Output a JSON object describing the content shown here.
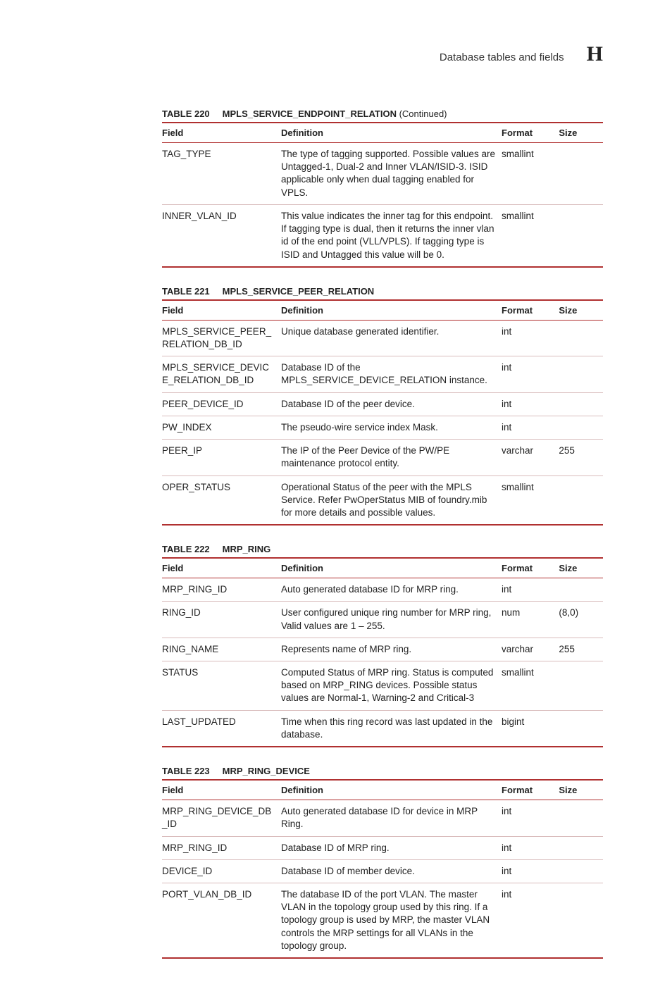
{
  "running_head": {
    "title": "Database tables and fields",
    "chapter": "H"
  },
  "colors": {
    "rule": "#b03030",
    "row_rule": "#d9bcbc"
  },
  "column_headers": {
    "field": "Field",
    "definition": "Definition",
    "format": "Format",
    "size": "Size"
  },
  "tables": {
    "t220": {
      "num": "TABLE 220",
      "name": "MPLS_SERVICE_ENDPOINT_RELATION",
      "suffix": " (Continued)",
      "rows": [
        {
          "field": "TAG_TYPE",
          "definition": "The type of tagging supported. Possible values are Untagged-1, Dual-2 and Inner VLAN/ISID-3. ISID applicable only when dual tagging enabled for VPLS.",
          "format": "smallint",
          "size": ""
        },
        {
          "field": "INNER_VLAN_ID",
          "definition": "This value indicates the inner tag for this endpoint. If tagging type is dual, then it returns the inner vlan id of the end point (VLL/VPLS). If tagging type is ISID and Untagged this value will be 0.",
          "format": "smallint",
          "size": ""
        }
      ]
    },
    "t221": {
      "num": "TABLE 221",
      "name": "MPLS_SERVICE_PEER_RELATION",
      "suffix": "",
      "rows": [
        {
          "field": "MPLS_SERVICE_PEER_RELATION_DB_ID",
          "definition": "Unique database generated identifier.",
          "format": "int",
          "size": ""
        },
        {
          "field": "MPLS_SERVICE_DEVICE_RELATION_DB_ID",
          "definition": "Database ID of the MPLS_SERVICE_DEVICE_RELATION instance.",
          "format": "int",
          "size": ""
        },
        {
          "field": "PEER_DEVICE_ID",
          "definition": "Database ID of the peer device.",
          "format": "int",
          "size": ""
        },
        {
          "field": "PW_INDEX",
          "definition": "The pseudo-wire service index Mask.",
          "format": "int",
          "size": ""
        },
        {
          "field": "PEER_IP",
          "definition": "The IP of the Peer Device of the PW/PE maintenance protocol entity.",
          "format": "varchar",
          "size": "255"
        },
        {
          "field": "OPER_STATUS",
          "definition": "Operational Status of the peer with the MPLS Service. Refer PwOperStatus MIB of foundry.mib for more details and possible values.",
          "format": "smallint",
          "size": ""
        }
      ]
    },
    "t222": {
      "num": "TABLE 222",
      "name": "MRP_RING",
      "suffix": "",
      "rows": [
        {
          "field": "MRP_RING_ID",
          "definition": "Auto generated database ID for MRP ring.",
          "format": "int",
          "size": ""
        },
        {
          "field": "RING_ID",
          "definition": "User configured unique ring number for MRP ring, Valid values are 1 – 255.",
          "format": "num",
          "size": "(8,0)"
        },
        {
          "field": "RING_NAME",
          "definition": "Represents name of MRP ring.",
          "format": "varchar",
          "size": "255"
        },
        {
          "field": "STATUS",
          "definition": "Computed Status of MRP ring. Status is computed based on MRP_RING devices. Possible status values are Normal-1, Warning-2 and Critical-3",
          "format": "smallint",
          "size": ""
        },
        {
          "field": "LAST_UPDATED",
          "definition": "Time when this ring record was last updated in the database.",
          "format": "bigint",
          "size": ""
        }
      ]
    },
    "t223": {
      "num": "TABLE 223",
      "name": "MRP_RING_DEVICE",
      "suffix": "",
      "rows": [
        {
          "field": "MRP_RING_DEVICE_DB_ID",
          "definition": "Auto generated database ID for device in MRP Ring.",
          "format": "int",
          "size": ""
        },
        {
          "field": "MRP_RING_ID",
          "definition": "Database ID of MRP ring.",
          "format": "int",
          "size": ""
        },
        {
          "field": "DEVICE_ID",
          "definition": "Database ID of member device.",
          "format": "int",
          "size": ""
        },
        {
          "field": "PORT_VLAN_DB_ID",
          "definition": "The database ID of the port VLAN. The master VLAN in the topology group used by this ring. If a topology group is used by MRP, the master VLAN controls the MRP settings for all VLANs in the topology group.",
          "format": "int",
          "size": ""
        }
      ]
    }
  }
}
